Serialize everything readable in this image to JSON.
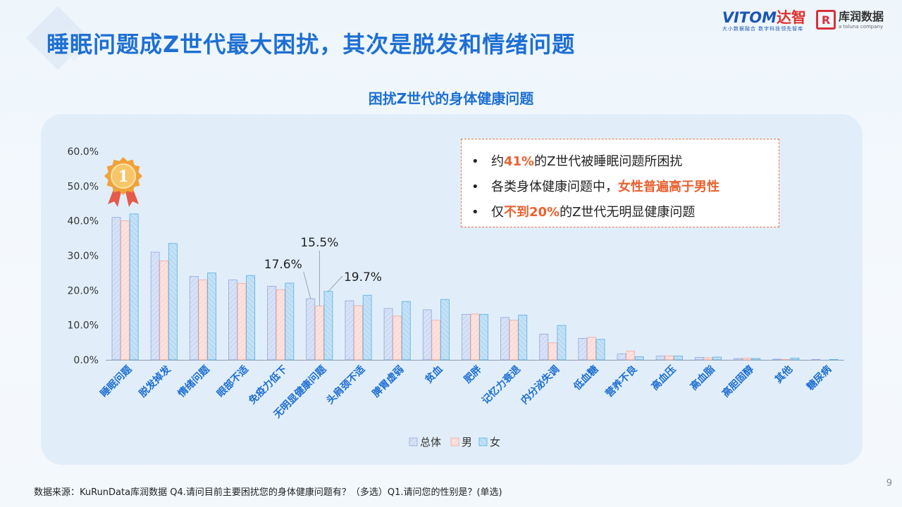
{
  "page": {
    "title": "睡眠问题成Z世代最大困扰，其次是脱发和情绪问题",
    "source": "数据来源：KuRunData库润数据 Q4.请问目前主要困扰您的身体健康问题有？（多选）Q1.请问您的性别是？(单选)",
    "page_number": "9",
    "logo_vitom": "VITOM",
    "logo_vitom_cn": "达智",
    "logo_vitom_sub": "大小数据融合 数字科技领先智库",
    "logo_kurun": "库润数据",
    "logo_kurun_en": "a toluna company",
    "logo_kurun_mark": "R"
  },
  "callout": {
    "line1": {
      "pre": "约",
      "hl": "41%",
      "post": "的Z世代被睡眠问题所困扰"
    },
    "line2": {
      "pre": "各类身体健康问题中，",
      "hl": "女性普遍高于男性",
      "post": ""
    },
    "line3": {
      "pre": "仅",
      "hl": "不到20%",
      "post": "的Z世代无明显健康问题"
    }
  },
  "badge": {
    "text": "1",
    "icon": "rank-medal-icon",
    "color": "#f0a23a"
  },
  "colors": {
    "overall_fill": "#d8e2f6",
    "overall_stroke": "#8fa8df",
    "male_fill": "#fbe2df",
    "male_stroke": "#f0a89c",
    "female_fill": "#c4e1f6",
    "female_stroke": "#5aaee3",
    "accent": "#1e6fd3",
    "highlight": "#e8612f"
  },
  "chart_data": {
    "type": "bar",
    "title": "困扰Z世代的身体健康问题",
    "categories": [
      "睡眠问题",
      "脱发掉发",
      "情绪问题",
      "眼部不适",
      "免疫力低下",
      "无明显健康问题",
      "头肩颈不适",
      "脾胃虚弱",
      "贫血",
      "肥胖",
      "记忆力衰退",
      "内分泌失调",
      "低血糖",
      "营养不良",
      "高血压",
      "高血脂",
      "高胆固醇",
      "其他",
      "糖尿病"
    ],
    "series": [
      {
        "name": "总体",
        "values": [
          41.0,
          31.0,
          24.0,
          23.0,
          21.2,
          17.6,
          17.0,
          14.8,
          14.4,
          13.1,
          12.2,
          7.4,
          6.2,
          1.7,
          1.1,
          0.7,
          0.4,
          0.2,
          0.1
        ]
      },
      {
        "name": "男",
        "values": [
          40.0,
          28.5,
          23.0,
          22.0,
          20.2,
          15.5,
          15.6,
          12.6,
          11.4,
          13.2,
          11.4,
          4.9,
          6.5,
          2.5,
          1.1,
          0.6,
          0.5,
          0.1,
          0.0
        ]
      },
      {
        "name": "女",
        "values": [
          42.0,
          33.5,
          25.0,
          24.3,
          22.1,
          19.7,
          18.6,
          16.8,
          17.4,
          13.1,
          12.9,
          9.9,
          5.9,
          0.9,
          1.1,
          0.8,
          0.4,
          0.5,
          0.1
        ]
      }
    ],
    "data_labels": [
      {
        "category": "无明显健康问题",
        "series": "总体",
        "text": "17.6%"
      },
      {
        "category": "无明显健康问题",
        "series": "男",
        "text": "15.5%"
      },
      {
        "category": "无明显健康问题",
        "series": "女",
        "text": "19.7%"
      }
    ],
    "ylim": [
      0,
      60
    ],
    "yticks": [
      "0.0%",
      "10.0%",
      "20.0%",
      "30.0%",
      "40.0%",
      "50.0%",
      "60.0%"
    ],
    "legend": [
      "总体",
      "男",
      "女"
    ],
    "legend_position": "bottom",
    "grid": false
  }
}
